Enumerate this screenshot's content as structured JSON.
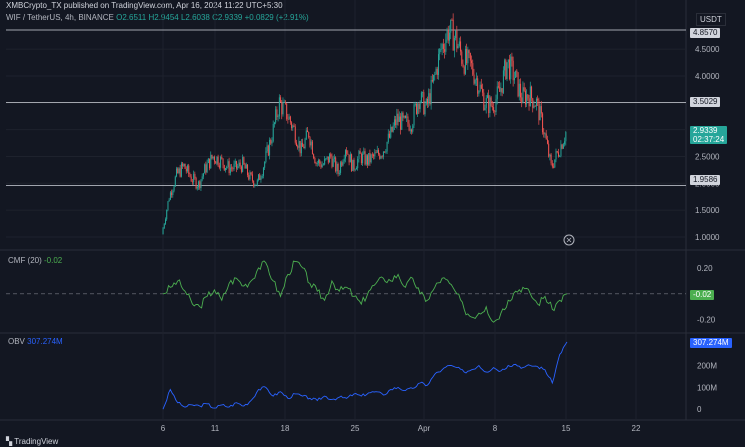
{
  "header": {
    "publisher": "XMBCrypto_TX published on TradingView.com, Apr 16, 2024 11:22 UTC+5:30",
    "symbol": "WIF / TetherUS, 4h, BINANCE",
    "ohlc": {
      "open": "O2.6511",
      "high": "H2.9454",
      "low": "L2.6038",
      "close": "C2.9339",
      "change": "+0.0829 (+2.91%)"
    },
    "currency": "USDT"
  },
  "colors": {
    "up": "#26a69a",
    "down": "#ef5350",
    "cmf": "#4caf50",
    "obv": "#2962ff",
    "level": "#d1d4dc"
  },
  "chart_data": [
    {
      "type": "candlestick",
      "title": "WIF / TetherUS, 4h, BINANCE",
      "x_ticks": [
        "6",
        "11",
        "18",
        "25",
        "Apr",
        "8",
        "15",
        "22"
      ],
      "y_ticks": [
        1.0,
        1.5,
        2.0,
        2.5,
        3.0,
        3.5,
        4.0,
        4.5
      ],
      "ylim": [
        0.85,
        4.95
      ],
      "horizontal_levels": [
        "4.8570",
        "3.5029",
        "1.9586"
      ],
      "last_price": "2.9339",
      "countdown": "02:37:24",
      "price_path": [
        1.05,
        1.75,
        2.15,
        2.32,
        2.1,
        1.98,
        2.3,
        2.5,
        2.42,
        2.3,
        2.28,
        2.35,
        2.1,
        2.0,
        2.4,
        2.9,
        3.5,
        3.3,
        3.0,
        2.6,
        2.95,
        2.4,
        2.35,
        2.5,
        2.2,
        2.7,
        2.3,
        2.5,
        2.42,
        2.5,
        2.6,
        2.85,
        3.2,
        3.1,
        3.15,
        3.6,
        3.4,
        3.9,
        4.5,
        4.85,
        4.7,
        4.3,
        4.2,
        3.9,
        3.5,
        3.45,
        3.7,
        4.25,
        4.0,
        3.6,
        3.65,
        3.5,
        3.0,
        2.3,
        2.6,
        2.95
      ],
      "price_dates": [
        "6",
        "",
        "",
        "",
        "",
        "",
        "",
        "",
        "",
        "",
        "11",
        "",
        "",
        "",
        "",
        "",
        "",
        "",
        "18",
        "",
        "",
        "",
        "",
        "",
        "",
        "",
        "25",
        "",
        "",
        "",
        "",
        "",
        "",
        "",
        "",
        "Apr",
        "",
        "",
        "",
        "",
        "",
        "",
        "",
        "8",
        "",
        "",
        "",
        "",
        "",
        "",
        "",
        "15",
        "",
        "",
        "",
        ""
      ]
    },
    {
      "type": "line",
      "title": "CMF (20)",
      "value": "-0.02",
      "y_ticks": [
        "0.20",
        "-0.20"
      ],
      "ylim": [
        -0.28,
        0.3
      ],
      "series": [
        {
          "values": [
            0.0,
            0.05,
            0.1,
            0.02,
            -0.08,
            -0.1,
            -0.02,
            0.03,
            -0.05,
            0.08,
            0.12,
            0.06,
            0.1,
            0.2,
            0.24,
            0.1,
            -0.02,
            0.15,
            0.25,
            0.2,
            0.08,
            0.02,
            -0.05,
            0.1,
            0.02,
            0.05,
            -0.02,
            -0.08,
            0.02,
            0.08,
            0.12,
            0.1,
            0.15,
            0.05,
            0.12,
            0.0,
            -0.05,
            0.05,
            0.12,
            0.08,
            0.0,
            -0.12,
            -0.18,
            -0.15,
            -0.1,
            -0.22,
            -0.15,
            -0.05,
            0.02,
            0.05,
            0.0,
            -0.08,
            -0.02,
            -0.12,
            -0.05,
            0.0
          ]
        }
      ]
    },
    {
      "type": "line",
      "title": "OBV",
      "value": "307.274M",
      "y_ticks": [
        "200M",
        "100M",
        "0"
      ],
      "ylim": [
        -40,
        330
      ],
      "series": [
        {
          "values": [
            0,
            90,
            30,
            10,
            20,
            15,
            25,
            5,
            20,
            10,
            30,
            15,
            40,
            90,
            100,
            60,
            80,
            50,
            70,
            60,
            50,
            40,
            60,
            45,
            55,
            50,
            70,
            60,
            75,
            80,
            65,
            90,
            100,
            85,
            95,
            120,
            110,
            160,
            180,
            200,
            190,
            170,
            180,
            200,
            170,
            190,
            175,
            200,
            205,
            190,
            200,
            195,
            180,
            120,
            250,
            307
          ]
        }
      ]
    }
  ],
  "footer": {
    "brand": "TradingView"
  }
}
